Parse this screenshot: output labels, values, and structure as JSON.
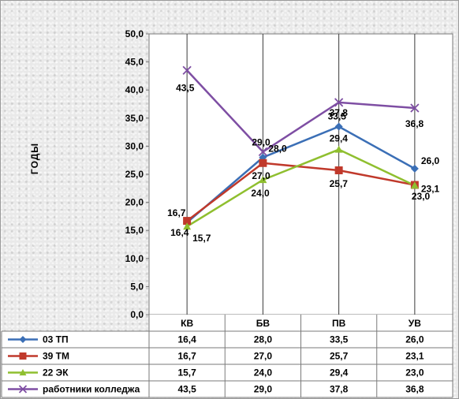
{
  "chart_data": {
    "type": "line",
    "title": "",
    "xlabel": "",
    "ylabel": "ГОДЫ",
    "ylim": [
      0,
      50
    ],
    "ytick_step": 5,
    "ytick_labels": [
      "0,0",
      "5,0",
      "10,0",
      "15,0",
      "20,0",
      "25,0",
      "30,0",
      "35,0",
      "40,0",
      "45,0",
      "50,0"
    ],
    "categories": [
      "КВ",
      "БВ",
      "ПВ",
      "УВ"
    ],
    "grid": "vertical",
    "legend": "data-table",
    "series": [
      {
        "name": "03 ТП",
        "color": "#3b6fb6",
        "marker": "diamond",
        "values": [
          16.4,
          28.0,
          33.5,
          26.0
        ],
        "labels": [
          "16,4",
          "28,0",
          "33,5",
          "26,0"
        ]
      },
      {
        "name": "39 ТМ",
        "color": "#c0392b",
        "marker": "square",
        "values": [
          16.7,
          27.0,
          25.7,
          23.1
        ],
        "labels": [
          "16,7",
          "27,0",
          "25,7",
          "23,1"
        ]
      },
      {
        "name": "22 ЭК",
        "color": "#8fbf2f",
        "marker": "triangle",
        "values": [
          15.7,
          24.0,
          29.4,
          23.0
        ],
        "labels": [
          "15,7",
          "24,0",
          "29,4",
          "23,0"
        ]
      },
      {
        "name": "работники колледжа",
        "color": "#7e4ea3",
        "marker": "x",
        "values": [
          43.5,
          29.0,
          37.8,
          36.8
        ],
        "labels": [
          "43,5",
          "29,0",
          "37,8",
          "36,8"
        ]
      }
    ]
  }
}
